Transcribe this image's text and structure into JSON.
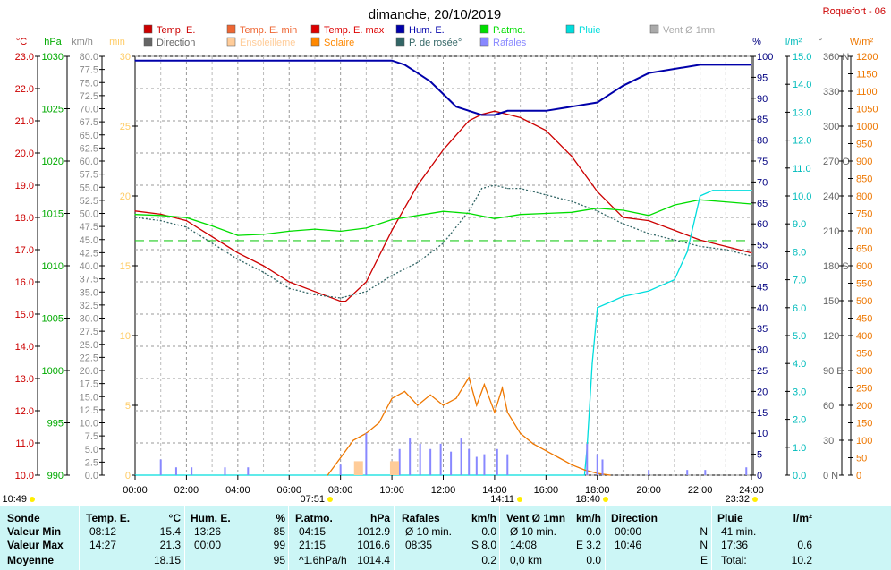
{
  "title": "dimanche, 20/10/2019",
  "station": "Roquefort - 06",
  "legend": [
    {
      "label": "Temp. E.",
      "color": "#cc0000"
    },
    {
      "label": "Temp. E. min",
      "color": "#ee6633"
    },
    {
      "label": "Temp. E. max",
      "color": "#dd0000"
    },
    {
      "label": "Hum. E.",
      "color": "#0000aa"
    },
    {
      "label": "P.atmo.",
      "color": "#00dd00"
    },
    {
      "label": "Pluie",
      "color": "#00dddd"
    },
    {
      "label": "Vent Ø 1mn",
      "color": "#aaaaaa"
    },
    {
      "label": "Direction",
      "color": "#666666"
    },
    {
      "label": "Ensoleilleme",
      "color": "#ffcc99"
    },
    {
      "label": "Solaire",
      "color": "#ff8800"
    },
    {
      "label": "P. de rosée°",
      "color": "#336666"
    },
    {
      "label": "Rafales",
      "color": "#8888ff"
    }
  ],
  "axis_units": {
    "temp": "°C",
    "press": "hPa",
    "wind": "km/h",
    "sun": "min",
    "hum": "%",
    "rain": "l/m²",
    "dir": "°",
    "solar": "W/m²"
  },
  "x_ticks": [
    "00:00",
    "02:00",
    "04:00",
    "06:00",
    "08:00",
    "10:00",
    "12:00",
    "14:00",
    "16:00",
    "18:00",
    "20:00",
    "22:00",
    "24:00"
  ],
  "markers": [
    {
      "label": "10:49",
      "color": "#ffee00"
    },
    {
      "label": "07:51",
      "color": "#ffee00"
    },
    {
      "label": "14:11",
      "color": "#ffee00"
    },
    {
      "label": "18:40",
      "color": "#ffee00"
    },
    {
      "label": "23:32",
      "color": "#ffee00"
    }
  ],
  "chart_data": {
    "type": "line",
    "x_unit": "hour",
    "xlim": [
      0,
      24
    ],
    "axes": {
      "temp": {
        "range": [
          10.0,
          23.0
        ],
        "ticks": [
          "10.0",
          "11.0",
          "12.0",
          "13.0",
          "14.0",
          "15.0",
          "16.0",
          "17.0",
          "18.0",
          "19.0",
          "20.0",
          "21.0",
          "22.0",
          "23.0"
        ],
        "color": "#cc0000"
      },
      "press": {
        "range": [
          990,
          1030
        ],
        "ticks": [
          "990",
          "995",
          "1000",
          "1005",
          "1010",
          "1015",
          "1020",
          "1025",
          "1030"
        ],
        "color": "#00aa00"
      },
      "wind": {
        "range": [
          0,
          80
        ],
        "ticks": [
          "0.0",
          "2.5",
          "5.0",
          "7.5",
          "10.0",
          "12.5",
          "15.0",
          "17.5",
          "20.0",
          "22.5",
          "25.0",
          "27.5",
          "30.0",
          "32.5",
          "35.0",
          "37.5",
          "40.0",
          "42.5",
          "45.0",
          "47.5",
          "50.0",
          "52.5",
          "55.0",
          "57.5",
          "60.0",
          "62.5",
          "65.0",
          "67.5",
          "70.0",
          "72.5",
          "75.0",
          "77.5",
          "80.0"
        ],
        "color": "#888888"
      },
      "sun": {
        "range": [
          0,
          30
        ],
        "ticks": [
          "0",
          "5",
          "10",
          "15",
          "20",
          "25",
          "30"
        ],
        "color": "#ffcc66"
      },
      "hum": {
        "range": [
          0,
          100
        ],
        "ticks": [
          "0",
          "5",
          "10",
          "15",
          "20",
          "25",
          "30",
          "35",
          "40",
          "45",
          "50",
          "55",
          "60",
          "65",
          "70",
          "75",
          "80",
          "85",
          "90",
          "95",
          "100"
        ],
        "color": "#000080"
      },
      "rain": {
        "range": [
          0,
          15
        ],
        "ticks": [
          "0.0",
          "1.0",
          "2.0",
          "3.0",
          "4.0",
          "5.0",
          "6.0",
          "7.0",
          "8.0",
          "9.0",
          "10.0",
          "11.0",
          "12.0",
          "13.0",
          "14.0",
          "15.0"
        ],
        "color": "#00bbbb"
      },
      "dir": {
        "range": [
          0,
          360
        ],
        "ticks": [
          "0 N",
          "30",
          "60",
          "90 E",
          "120",
          "150",
          "180 S",
          "210",
          "240",
          "270 O",
          "300",
          "330",
          "360 N"
        ],
        "color": "#666666"
      },
      "solar": {
        "range": [
          0,
          1200
        ],
        "ticks": [
          "0",
          "50",
          "100",
          "150",
          "200",
          "250",
          "300",
          "350",
          "400",
          "450",
          "500",
          "550",
          "600",
          "650",
          "700",
          "750",
          "800",
          "850",
          "900",
          "950",
          "1000",
          "1050",
          "1100",
          "1150",
          "1200"
        ],
        "color": "#ee7700"
      }
    },
    "reference_line": {
      "axis": "press",
      "value": 1012.4
    },
    "series": [
      {
        "name": "Temp. E.",
        "axis": "temp",
        "color": "#cc0000",
        "x": [
          0,
          1,
          2,
          3,
          4,
          5,
          6,
          7,
          8,
          8.2,
          9,
          10,
          11,
          12,
          13,
          13.5,
          14,
          14.5,
          15,
          16,
          17,
          18,
          19,
          20,
          21,
          22,
          23,
          24
        ],
        "y": [
          18.2,
          18.1,
          17.9,
          17.4,
          16.9,
          16.5,
          16.0,
          15.7,
          15.4,
          15.4,
          16.0,
          17.6,
          19.0,
          20.1,
          21.0,
          21.2,
          21.3,
          21.2,
          21.1,
          20.7,
          19.9,
          18.8,
          18.0,
          17.9,
          17.6,
          17.3,
          17.1,
          16.9
        ]
      },
      {
        "name": "P. de rosée°",
        "axis": "temp",
        "color": "#336666",
        "x": [
          0,
          1,
          2,
          3,
          4,
          5,
          6,
          7,
          8,
          9,
          10,
          11,
          12,
          13,
          13.5,
          14,
          14.5,
          15,
          16,
          17,
          18,
          19,
          20,
          21,
          22,
          23,
          24
        ],
        "y": [
          18.0,
          17.9,
          17.7,
          17.2,
          16.7,
          16.3,
          15.8,
          15.6,
          15.5,
          15.7,
          16.2,
          16.6,
          17.2,
          18.2,
          18.9,
          19.0,
          18.9,
          18.9,
          18.7,
          18.5,
          18.2,
          17.8,
          17.5,
          17.3,
          17.1,
          17.0,
          16.8
        ]
      },
      {
        "name": "Hum. E.",
        "axis": "hum",
        "color": "#0000aa",
        "x": [
          0,
          3,
          6,
          8,
          9,
          10,
          10.5,
          11,
          11.5,
          12,
          12.5,
          13,
          13.5,
          14,
          14.5,
          15,
          16,
          17,
          18,
          18.5,
          19,
          20,
          21,
          22,
          23,
          24
        ],
        "y": [
          99,
          99,
          99,
          99,
          99,
          99,
          98,
          96,
          94,
          91,
          88,
          87,
          86,
          86,
          87,
          87,
          87,
          88,
          89,
          91,
          93,
          96,
          97,
          98,
          98,
          98
        ]
      },
      {
        "name": "P.atmo.",
        "axis": "press",
        "color": "#00dd00",
        "x": [
          0,
          1,
          2,
          3,
          4,
          5,
          6,
          7,
          8,
          9,
          10,
          11,
          12,
          13,
          14,
          15,
          16,
          17,
          18,
          19,
          20,
          21,
          22,
          23,
          24
        ],
        "y": [
          1014.9,
          1014.8,
          1014.6,
          1013.8,
          1012.9,
          1013.0,
          1013.3,
          1013.5,
          1013.3,
          1013.6,
          1014.4,
          1014.8,
          1015.2,
          1015.0,
          1014.5,
          1014.9,
          1015.0,
          1015.1,
          1015.5,
          1015.3,
          1014.8,
          1015.8,
          1016.3,
          1016.1,
          1015.9
        ]
      },
      {
        "name": "Pluie",
        "axis": "rain",
        "color": "#00dddd",
        "x": [
          0,
          17.5,
          17.6,
          17.8,
          18.0,
          18.5,
          19,
          19.5,
          20,
          20.5,
          21,
          21.5,
          22,
          22.5,
          23,
          24
        ],
        "y": [
          0,
          0,
          1.0,
          4.0,
          6.0,
          6.2,
          6.4,
          6.5,
          6.6,
          6.8,
          7.0,
          8.0,
          10.0,
          10.2,
          10.2,
          10.2
        ]
      },
      {
        "name": "Solaire",
        "axis": "solar",
        "color": "#ee7700",
        "x": [
          7.5,
          8,
          8.5,
          9,
          9.5,
          10,
          10.5,
          11,
          11.5,
          12,
          12.5,
          13,
          13.3,
          13.6,
          14,
          14.3,
          14.5,
          15,
          15.5,
          16,
          16.5,
          17,
          17.5,
          18,
          18.5
        ],
        "y": [
          0,
          50,
          100,
          120,
          150,
          220,
          240,
          200,
          230,
          200,
          220,
          280,
          200,
          260,
          180,
          250,
          180,
          120,
          90,
          70,
          50,
          30,
          15,
          5,
          0
        ]
      },
      {
        "name": "Rafales",
        "axis": "wind",
        "color": "#8888ff",
        "type": "bar",
        "x": [
          1.0,
          1.6,
          2.2,
          3.5,
          4.4,
          8.0,
          9.0,
          10.3,
          10.7,
          11.1,
          11.5,
          11.9,
          12.3,
          12.7,
          13.0,
          13.3,
          13.6,
          14.1,
          14.5,
          17.6,
          18.0,
          18.2,
          20.0,
          21.5,
          22.2,
          23.8
        ],
        "y": [
          3.0,
          1.5,
          1.5,
          1.5,
          1.5,
          2.0,
          8.0,
          5.0,
          7.0,
          6.0,
          5.0,
          6.0,
          4.5,
          7.0,
          5.0,
          3.5,
          4.0,
          5.0,
          4.0,
          6.0,
          4.0,
          3.0,
          1.0,
          1.0,
          1.0,
          1.5
        ]
      },
      {
        "name": "Ensoleilleme",
        "axis": "sun",
        "color": "#ffcc99",
        "type": "bar",
        "x": [
          8.7,
          10.1
        ],
        "y": [
          1.0,
          1.0
        ]
      }
    ]
  },
  "table": {
    "columns": [
      {
        "title": "Sonde",
        "unit": ""
      },
      {
        "title": "Temp. E.",
        "unit": "°C"
      },
      {
        "title": "Hum. E.",
        "unit": "%"
      },
      {
        "title": "P.atmo.",
        "unit": "hPa"
      },
      {
        "title": "Rafales",
        "unit": "km/h"
      },
      {
        "title": "Vent Ø 1mn",
        "unit": "km/h"
      },
      {
        "title": "Direction",
        "unit": ""
      },
      {
        "title": "Pluie",
        "unit": "l/m²"
      }
    ],
    "rows": [
      {
        "label": "Valeur Min",
        "cells": [
          [
            "08:12",
            "15.4"
          ],
          [
            "13:26",
            "85"
          ],
          [
            "04:15",
            "1012.9"
          ],
          [
            "Ø 10 min.",
            "0.0"
          ],
          [
            "Ø 10 min.",
            "0.0"
          ],
          [
            "00:00",
            "N"
          ],
          [
            "41 min.",
            ""
          ]
        ]
      },
      {
        "label": "Valeur Max",
        "cells": [
          [
            "14:27",
            "21.3"
          ],
          [
            "00:00",
            "99"
          ],
          [
            "21:15",
            "1016.6"
          ],
          [
            "08:35",
            "S 8.0"
          ],
          [
            "14:08",
            "E 3.2"
          ],
          [
            "10:46",
            "N"
          ],
          [
            "17:36",
            "0.6"
          ]
        ]
      },
      {
        "label": "Moyenne",
        "cells": [
          [
            "",
            "18.15"
          ],
          [
            "",
            "95"
          ],
          [
            "^1.6hPa/h",
            "1014.4"
          ],
          [
            "",
            "0.2"
          ],
          [
            "0,0 km",
            "0.0"
          ],
          [
            "",
            "E"
          ],
          [
            "Total:",
            "10.2"
          ]
        ]
      }
    ]
  }
}
